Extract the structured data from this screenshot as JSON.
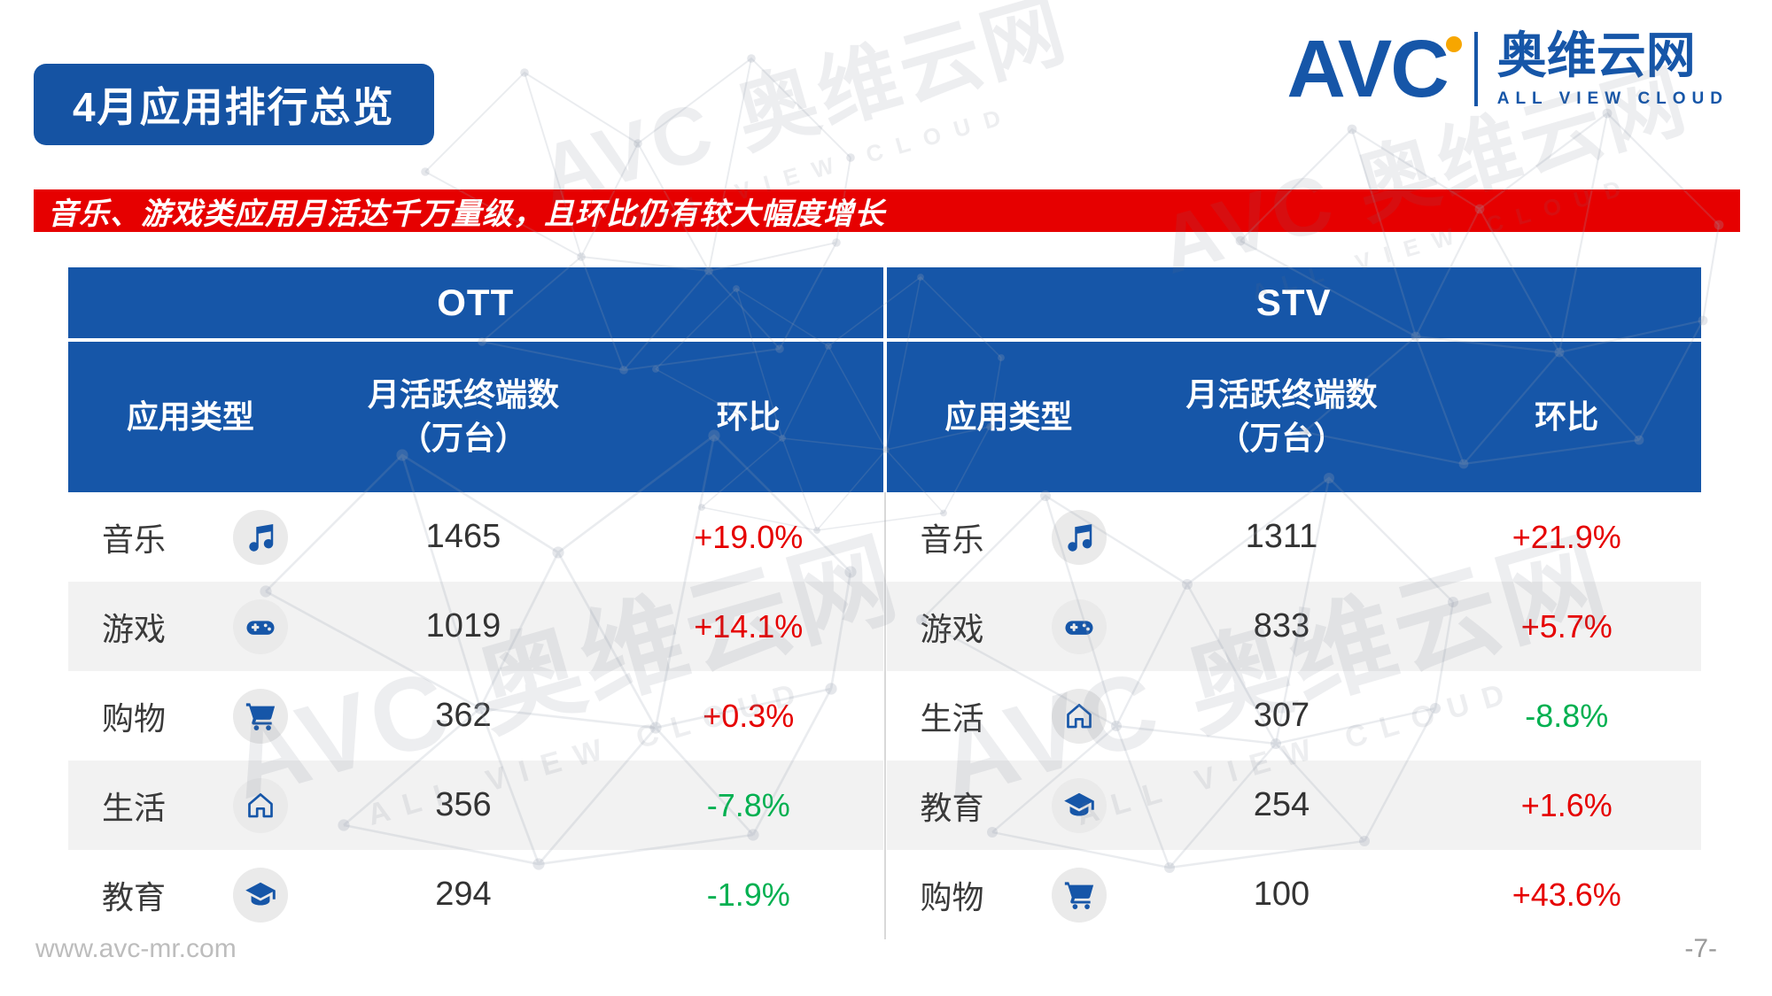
{
  "slide": {
    "title": "4月应用排行总览",
    "subtitle": "音乐、游戏类应用月活达千万量级，且环比仍有较大幅度增长",
    "footer": {
      "website": "www.avc-mr.com",
      "page_number": "-7-"
    }
  },
  "logo": {
    "abbr": "AVC",
    "name": "奥维云网",
    "tagline": "ALL VIEW CLOUD"
  },
  "watermark": {
    "text": "AVC 奥维云网",
    "tagline": "ALL VIEW CLOUD"
  },
  "chart_data": [
    {
      "type": "table",
      "title": "OTT",
      "columns": {
        "category": "应用类型",
        "value_line1": "月活跃终端数",
        "value_line2": "（万台）",
        "change": "环比"
      },
      "rows": [
        {
          "category": "音乐",
          "icon": "music-icon",
          "monthly_active_devices_wan": 1465,
          "mom_change": "+19.0%"
        },
        {
          "category": "游戏",
          "icon": "gamepad-icon",
          "monthly_active_devices_wan": 1019,
          "mom_change": "+14.1%"
        },
        {
          "category": "购物",
          "icon": "cart-icon",
          "monthly_active_devices_wan": 362,
          "mom_change": "+0.3%"
        },
        {
          "category": "生活",
          "icon": "home-icon",
          "monthly_active_devices_wan": 356,
          "mom_change": "-7.8%"
        },
        {
          "category": "教育",
          "icon": "education-icon",
          "monthly_active_devices_wan": 294,
          "mom_change": "-1.9%"
        }
      ]
    },
    {
      "type": "table",
      "title": "STV",
      "columns": {
        "category": "应用类型",
        "value_line1": "月活跃终端数",
        "value_line2": "（万台）",
        "change": "环比"
      },
      "rows": [
        {
          "category": "音乐",
          "icon": "music-icon",
          "monthly_active_devices_wan": 1311,
          "mom_change": "+21.9%"
        },
        {
          "category": "游戏",
          "icon": "gamepad-icon",
          "monthly_active_devices_wan": 833,
          "mom_change": "+5.7%"
        },
        {
          "category": "生活",
          "icon": "home-icon",
          "monthly_active_devices_wan": 307,
          "mom_change": "-8.8%"
        },
        {
          "category": "教育",
          "icon": "education-icon",
          "monthly_active_devices_wan": 254,
          "mom_change": "+1.6%"
        },
        {
          "category": "购物",
          "icon": "cart-icon",
          "monthly_active_devices_wan": 100,
          "mom_change": "+43.6%"
        }
      ]
    }
  ],
  "colors": {
    "brand_blue": "#1656A8",
    "banner_blue": "#1553A3",
    "alert_red": "#E60000",
    "positive_change_red": "#E60000",
    "negative_change_green": "#00B050",
    "row_alt_gray": "#F2F2F2",
    "icon_circle_gray": "#EAEAEA",
    "logo_dot_orange": "#F7A600"
  }
}
